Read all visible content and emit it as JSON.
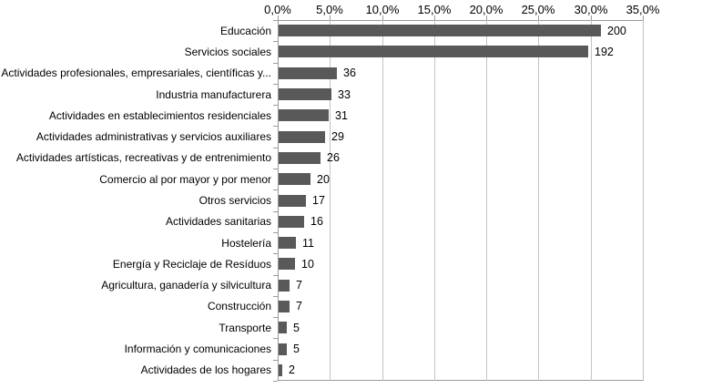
{
  "chart_data": {
    "type": "bar",
    "orientation": "horizontal",
    "title": "",
    "xlabel": "",
    "ylabel": "",
    "x_axis_position": "top",
    "x_min": 0,
    "x_max": 35,
    "x_tick_labels": [
      "0,0%",
      "5,0%",
      "10,0%",
      "15,0%",
      "20,0%",
      "25,0%",
      "30,0%",
      "35,0%"
    ],
    "grid": true,
    "legend": false,
    "categories": [
      "Educación",
      "Servicios sociales",
      "Actividades profesionales, empresariales, científicas y...",
      "Industria manufacturera",
      "Actividades en establecimientos residenciales",
      "Actividades administrativas y servicios auxiliares",
      "Actividades artísticas, recreativas y de entrenimiento",
      "Comercio al por mayor y por menor",
      "Otros servicios",
      "Actividades sanitarias",
      "Hostelería",
      "Energía y Reciclaje de Resíduos",
      "Agricultura, ganadería y silvicultura",
      "Construcción",
      "Transporte",
      "Información y comunicaciones",
      "Actividades de los hogares"
    ],
    "values": [
      200,
      192,
      36,
      33,
      31,
      29,
      26,
      20,
      17,
      16,
      11,
      10,
      7,
      7,
      5,
      5,
      2
    ],
    "value_labels": [
      "200",
      "192",
      "36",
      "33",
      "31",
      "29",
      "26",
      "20",
      "17",
      "16",
      "11",
      "10",
      "7",
      "7",
      "5",
      "5",
      "2"
    ],
    "axis_note": "bar lengths plotted as percent of total (sum of values = 647)",
    "colors": {
      "bar": "#595959",
      "gridline": "#c3c3c3",
      "axis_line": "#9a9a9a",
      "text": "#000000",
      "background": "#ffffff"
    }
  }
}
